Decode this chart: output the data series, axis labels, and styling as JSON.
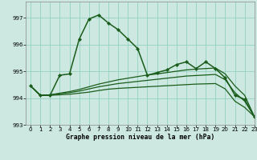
{
  "title": "Graphe pression niveau de la mer (hPa)",
  "background_color": "#cce8e0",
  "grid_color": "#88ccbb",
  "line_color": "#1a5c1a",
  "xlim": [
    -0.5,
    23
  ],
  "ylim": [
    993,
    997.6
  ],
  "yticks": [
    993,
    994,
    995,
    996,
    997
  ],
  "xticks": [
    0,
    1,
    2,
    3,
    4,
    5,
    6,
    7,
    8,
    9,
    10,
    11,
    12,
    13,
    14,
    15,
    16,
    17,
    18,
    19,
    20,
    21,
    22,
    23
  ],
  "series": [
    {
      "x": [
        0,
        1,
        2,
        3,
        4,
        5,
        6,
        7,
        8,
        9,
        10,
        11,
        12,
        13,
        14,
        15,
        16,
        17,
        18,
        19,
        20,
        21,
        22,
        23
      ],
      "y": [
        994.45,
        994.1,
        994.1,
        994.85,
        994.9,
        996.2,
        996.95,
        997.1,
        996.8,
        996.55,
        996.2,
        995.85,
        994.85,
        994.95,
        995.05,
        995.25,
        995.35,
        995.1,
        995.35,
        995.1,
        994.75,
        994.1,
        993.95,
        993.3
      ],
      "marker": "D",
      "markersize": 2.2,
      "linewidth": 1.1
    },
    {
      "x": [
        0,
        1,
        2,
        3,
        4,
        5,
        6,
        7,
        8,
        9,
        10,
        11,
        12,
        13,
        14,
        15,
        16,
        17,
        18,
        19,
        20,
        21,
        22,
        23
      ],
      "y": [
        994.45,
        994.1,
        994.12,
        994.18,
        994.24,
        994.32,
        994.42,
        994.52,
        994.6,
        994.68,
        994.74,
        994.8,
        994.86,
        994.9,
        994.95,
        995.0,
        995.05,
        995.08,
        995.1,
        995.12,
        994.9,
        994.45,
        994.1,
        993.3
      ],
      "marker": null,
      "linewidth": 0.9
    },
    {
      "x": [
        0,
        1,
        2,
        3,
        4,
        5,
        6,
        7,
        8,
        9,
        10,
        11,
        12,
        13,
        14,
        15,
        16,
        17,
        18,
        19,
        20,
        21,
        22,
        23
      ],
      "y": [
        994.45,
        994.1,
        994.12,
        994.16,
        994.2,
        994.26,
        994.34,
        994.42,
        994.48,
        994.54,
        994.58,
        994.62,
        994.66,
        994.7,
        994.74,
        994.78,
        994.82,
        994.84,
        994.86,
        994.88,
        994.68,
        994.2,
        993.88,
        993.3
      ],
      "marker": null,
      "linewidth": 0.9
    },
    {
      "x": [
        0,
        1,
        2,
        3,
        4,
        5,
        6,
        7,
        8,
        9,
        10,
        11,
        12,
        13,
        14,
        15,
        16,
        17,
        18,
        19,
        20,
        21,
        22,
        23
      ],
      "y": [
        994.45,
        994.1,
        994.1,
        994.12,
        994.14,
        994.18,
        994.22,
        994.28,
        994.33,
        994.36,
        994.38,
        994.4,
        994.42,
        994.44,
        994.46,
        994.48,
        994.5,
        994.52,
        994.53,
        994.54,
        994.34,
        993.88,
        993.65,
        993.3
      ],
      "marker": null,
      "linewidth": 0.9
    }
  ],
  "xlabel_fontsize": 5.8,
  "tick_fontsize": 5.0
}
